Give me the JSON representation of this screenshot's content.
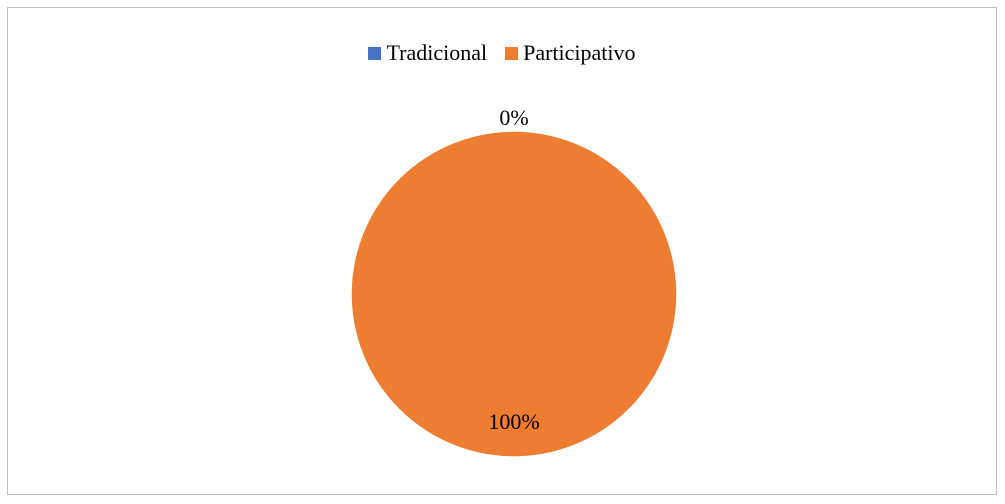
{
  "chart_data": {
    "type": "pie",
    "categories": [
      "Tradicional",
      "Participativo"
    ],
    "values": [
      0,
      100
    ],
    "data_labels": [
      "0%",
      "100%"
    ],
    "colors": [
      "#4472c4",
      "#ed7d31"
    ],
    "legend_position": "top",
    "title": ""
  }
}
